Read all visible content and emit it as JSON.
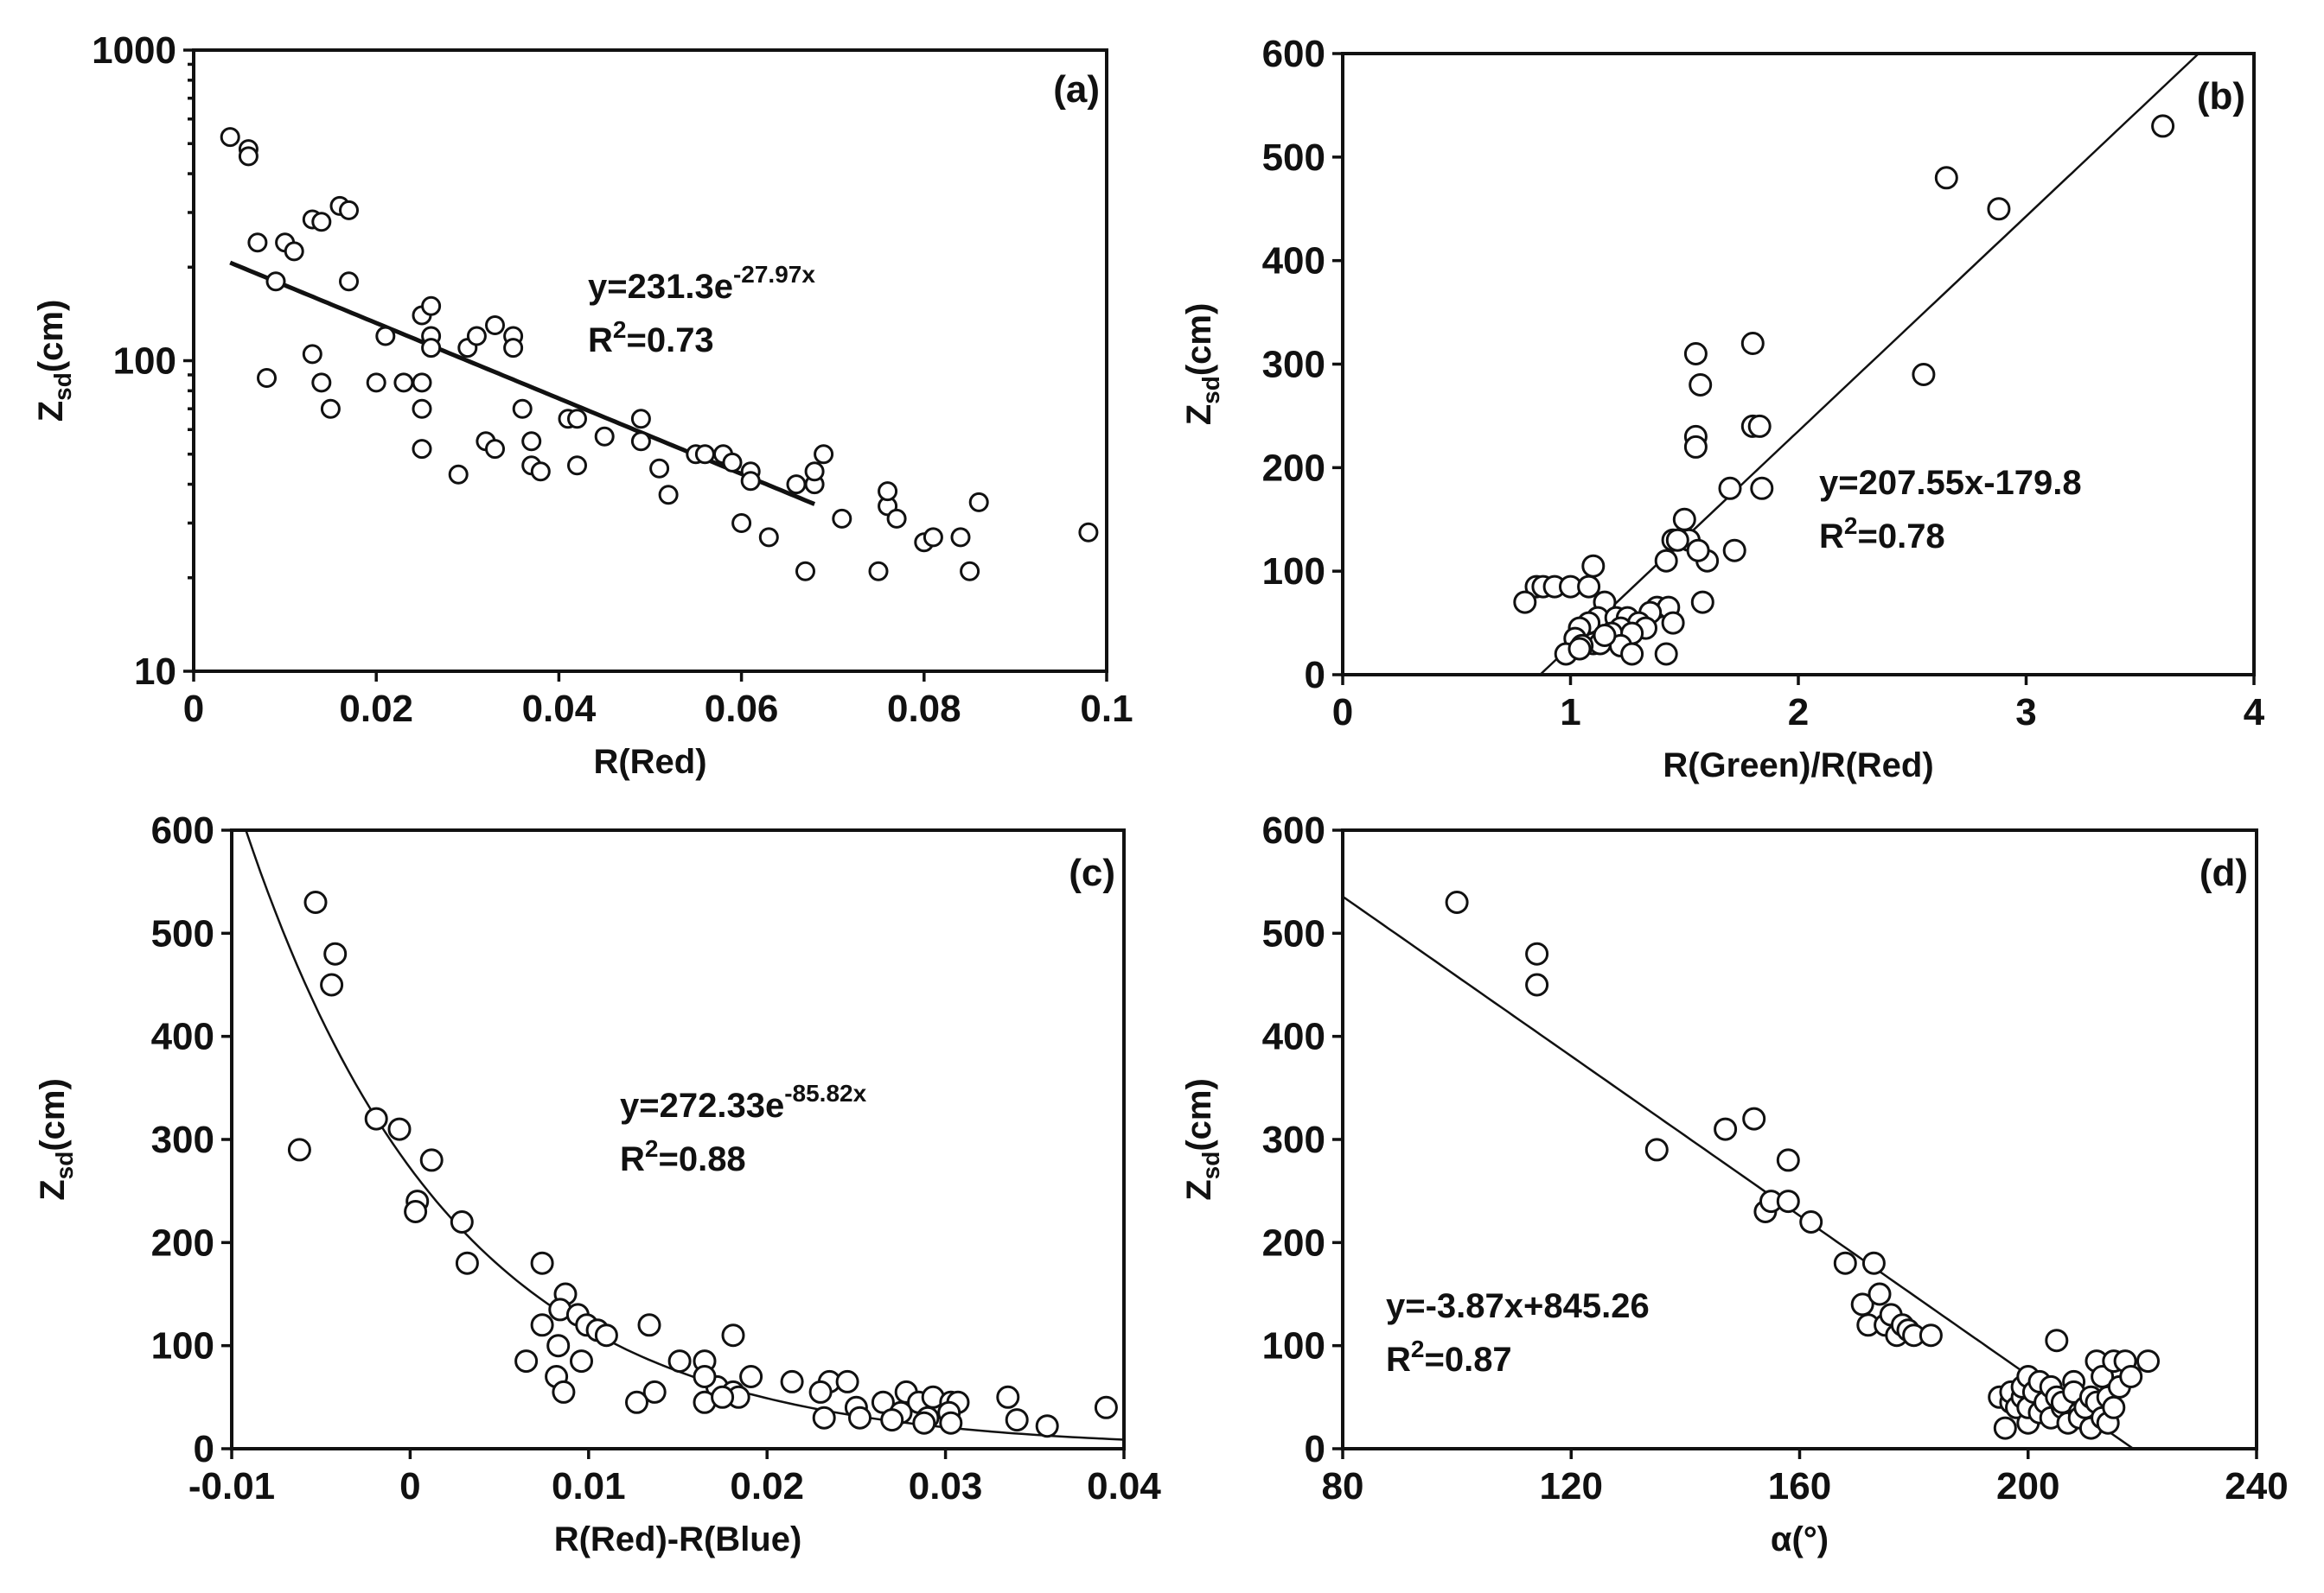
{
  "chart_data": [
    {
      "panel": "(a)",
      "type": "scatter",
      "xlabel": "R(Red)",
      "ylabel": "Zsd(cm)",
      "ylabel_main": "Z",
      "ylabel_sub": "sd",
      "ylabel_tail": "(cm)",
      "xlim": [
        0,
        0.1
      ],
      "ylim": [
        10,
        1000
      ],
      "yscale": "log",
      "xticks": [
        0,
        0.02,
        0.04,
        0.06,
        0.08,
        0.1
      ],
      "xtick_labels": [
        "0",
        "0.02",
        "0.04",
        "0.06",
        "0.08",
        "0.1"
      ],
      "yticks": [
        10,
        100,
        1000
      ],
      "ytick_labels": [
        "10",
        "100",
        "1000"
      ],
      "equation": {
        "base": "y=231.3e",
        "exp": "-27.97x",
        "r2_prefix": "R",
        "r2_sup": "2",
        "r2_value": "=0.73"
      },
      "fit": {
        "kind": "exp",
        "a": 231.3,
        "b": -27.97,
        "x_range": [
          0.004,
          0.068
        ]
      },
      "points": [
        [
          0.004,
          525
        ],
        [
          0.006,
          480
        ],
        [
          0.006,
          455
        ],
        [
          0.007,
          240
        ],
        [
          0.008,
          88
        ],
        [
          0.009,
          180
        ],
        [
          0.01,
          240
        ],
        [
          0.011,
          225
        ],
        [
          0.013,
          285
        ],
        [
          0.013,
          105
        ],
        [
          0.014,
          280
        ],
        [
          0.014,
          85
        ],
        [
          0.015,
          70
        ],
        [
          0.016,
          315
        ],
        [
          0.017,
          305
        ],
        [
          0.017,
          180
        ],
        [
          0.02,
          85
        ],
        [
          0.021,
          120
        ],
        [
          0.023,
          85
        ],
        [
          0.025,
          140
        ],
        [
          0.025,
          85
        ],
        [
          0.025,
          70
        ],
        [
          0.025,
          52
        ],
        [
          0.026,
          120
        ],
        [
          0.026,
          110
        ],
        [
          0.026,
          150
        ],
        [
          0.029,
          43
        ],
        [
          0.03,
          110
        ],
        [
          0.031,
          120
        ],
        [
          0.032,
          55
        ],
        [
          0.033,
          130
        ],
        [
          0.033,
          52
        ],
        [
          0.035,
          120
        ],
        [
          0.035,
          110
        ],
        [
          0.036,
          70
        ],
        [
          0.037,
          55
        ],
        [
          0.037,
          46
        ],
        [
          0.038,
          44
        ],
        [
          0.041,
          65
        ],
        [
          0.042,
          65
        ],
        [
          0.042,
          46
        ],
        [
          0.045,
          57
        ],
        [
          0.049,
          65
        ],
        [
          0.049,
          55
        ],
        [
          0.051,
          45
        ],
        [
          0.052,
          37
        ],
        [
          0.055,
          50
        ],
        [
          0.056,
          50
        ],
        [
          0.058,
          50
        ],
        [
          0.059,
          47
        ],
        [
          0.06,
          30
        ],
        [
          0.061,
          44
        ],
        [
          0.061,
          41
        ],
        [
          0.063,
          27
        ],
        [
          0.066,
          40
        ],
        [
          0.067,
          21
        ],
        [
          0.068,
          40
        ],
        [
          0.068,
          44
        ],
        [
          0.069,
          50
        ],
        [
          0.071,
          31
        ],
        [
          0.075,
          21
        ],
        [
          0.076,
          34
        ],
        [
          0.076,
          38
        ],
        [
          0.077,
          31
        ],
        [
          0.08,
          26
        ],
        [
          0.081,
          27
        ],
        [
          0.084,
          27
        ],
        [
          0.085,
          21
        ],
        [
          0.086,
          35
        ],
        [
          0.098,
          28
        ]
      ]
    },
    {
      "panel": "(b)",
      "type": "scatter",
      "xlabel": "R(Green)/R(Red)",
      "ylabel": "Zsd(cm)",
      "ylabel_main": "Z",
      "ylabel_sub": "sd",
      "ylabel_tail": "(cm)",
      "xlim": [
        0,
        4
      ],
      "ylim": [
        0,
        600
      ],
      "yscale": "linear",
      "xticks": [
        0,
        1,
        2,
        3,
        4
      ],
      "xtick_labels": [
        "0",
        "1",
        "2",
        "3",
        "4"
      ],
      "yticks": [
        0,
        100,
        200,
        300,
        400,
        500,
        600
      ],
      "ytick_labels": [
        "0",
        "100",
        "200",
        "300",
        "400",
        "500",
        "600"
      ],
      "equation": {
        "base": "y=207.55x-179.8",
        "exp": "",
        "r2_prefix": "R",
        "r2_sup": "2",
        "r2_value": "=0.78"
      },
      "fit": {
        "kind": "linear",
        "a": 207.55,
        "b": -179.8,
        "x_range": [
          0.866,
          3.757
        ]
      },
      "points": [
        [
          3.6,
          530
        ],
        [
          2.65,
          480
        ],
        [
          2.88,
          450
        ],
        [
          1.8,
          320
        ],
        [
          1.55,
          310
        ],
        [
          2.55,
          290
        ],
        [
          1.57,
          280
        ],
        [
          1.8,
          240
        ],
        [
          1.83,
          240
        ],
        [
          1.55,
          230
        ],
        [
          1.55,
          220
        ],
        [
          1.7,
          180
        ],
        [
          1.84,
          180
        ],
        [
          1.5,
          150
        ],
        [
          1.45,
          130
        ],
        [
          1.52,
          130
        ],
        [
          1.6,
          110
        ],
        [
          1.72,
          120
        ],
        [
          1.56,
          120
        ],
        [
          1.42,
          110
        ],
        [
          1.1,
          105
        ],
        [
          1.47,
          130
        ],
        [
          0.85,
          85
        ],
        [
          0.88,
          85
        ],
        [
          0.93,
          85
        ],
        [
          1.0,
          85
        ],
        [
          1.08,
          85
        ],
        [
          0.8,
          70
        ],
        [
          1.15,
          70
        ],
        [
          1.58,
          70
        ],
        [
          1.38,
          65
        ],
        [
          1.43,
          65
        ],
        [
          1.35,
          60
        ],
        [
          1.12,
          55
        ],
        [
          1.2,
          55
        ],
        [
          1.25,
          55
        ],
        [
          1.3,
          50
        ],
        [
          1.08,
          50
        ],
        [
          1.45,
          50
        ],
        [
          1.04,
          45
        ],
        [
          1.22,
          45
        ],
        [
          1.33,
          45
        ],
        [
          1.18,
          40
        ],
        [
          1.27,
          40
        ],
        [
          1.02,
          35
        ],
        [
          1.1,
          30
        ],
        [
          1.13,
          30
        ],
        [
          1.05,
          28
        ],
        [
          1.22,
          28
        ],
        [
          1.27,
          20
        ],
        [
          1.42,
          20
        ],
        [
          0.98,
          20
        ],
        [
          1.15,
          38
        ],
        [
          1.04,
          25
        ]
      ]
    },
    {
      "panel": "(c)",
      "type": "scatter",
      "xlabel": "R(Red)-R(Blue)",
      "ylabel": "Zsd(cm)",
      "ylabel_main": "Z",
      "ylabel_sub": "sd",
      "ylabel_tail": "(cm)",
      "xlim": [
        -0.01,
        0.04
      ],
      "ylim": [
        0,
        600
      ],
      "yscale": "linear",
      "xticks": [
        -0.01,
        0,
        0.01,
        0.02,
        0.03,
        0.04
      ],
      "xtick_labels": [
        "-0.01",
        "0",
        "0.01",
        "0.02",
        "0.03",
        "0.04"
      ],
      "yticks": [
        0,
        100,
        200,
        300,
        400,
        500,
        600
      ],
      "ytick_labels": [
        "0",
        "100",
        "200",
        "300",
        "400",
        "500",
        "600"
      ],
      "equation": {
        "base": "y=272.33e",
        "exp": "-85.82x",
        "r2_prefix": "R",
        "r2_sup": "2",
        "r2_value": "=0.88"
      },
      "fit": {
        "kind": "exp",
        "a": 272.33,
        "b": -85.82,
        "x_range": [
          -0.0092,
          0.04
        ]
      },
      "points": [
        [
          -0.0053,
          530
        ],
        [
          -0.0042,
          480
        ],
        [
          -0.0044,
          450
        ],
        [
          -0.0019,
          320
        ],
        [
          -0.0006,
          310
        ],
        [
          -0.0062,
          290
        ],
        [
          0.0012,
          280
        ],
        [
          0.0004,
          240
        ],
        [
          0.0003,
          230
        ],
        [
          0.0029,
          220
        ],
        [
          0.0032,
          180
        ],
        [
          0.0074,
          180
        ],
        [
          0.0087,
          150
        ],
        [
          0.0084,
          135
        ],
        [
          0.0094,
          130
        ],
        [
          0.0074,
          120
        ],
        [
          0.0099,
          120
        ],
        [
          0.0134,
          120
        ],
        [
          0.0105,
          115
        ],
        [
          0.011,
          110
        ],
        [
          0.0181,
          110
        ],
        [
          0.0083,
          100
        ],
        [
          0.0065,
          85
        ],
        [
          0.0096,
          85
        ],
        [
          0.0151,
          85
        ],
        [
          0.0165,
          85
        ],
        [
          0.0172,
          60
        ],
        [
          0.0082,
          70
        ],
        [
          0.0165,
          70
        ],
        [
          0.0191,
          70
        ],
        [
          0.0214,
          65
        ],
        [
          0.0235,
          65
        ],
        [
          0.0245,
          65
        ],
        [
          0.0086,
          55
        ],
        [
          0.0137,
          55
        ],
        [
          0.0181,
          55
        ],
        [
          0.0184,
          50
        ],
        [
          0.0165,
          45
        ],
        [
          0.0175,
          50
        ],
        [
          0.0127,
          45
        ],
        [
          0.023,
          55
        ],
        [
          0.025,
          40
        ],
        [
          0.0265,
          45
        ],
        [
          0.0278,
          55
        ],
        [
          0.0285,
          45
        ],
        [
          0.0293,
          50
        ],
        [
          0.0303,
          45
        ],
        [
          0.0307,
          45
        ],
        [
          0.0302,
          35
        ],
        [
          0.029,
          30
        ],
        [
          0.0275,
          35
        ],
        [
          0.0252,
          30
        ],
        [
          0.0232,
          30
        ],
        [
          0.027,
          28
        ],
        [
          0.0288,
          25
        ],
        [
          0.0303,
          25
        ],
        [
          0.0335,
          50
        ],
        [
          0.034,
          28
        ],
        [
          0.0357,
          22
        ],
        [
          0.039,
          40
        ]
      ]
    },
    {
      "panel": "(d)",
      "type": "scatter",
      "xlabel": "α(°)",
      "ylabel": "Zsd(cm)",
      "ylabel_main": "Z",
      "ylabel_sub": "sd",
      "ylabel_tail": "(cm)",
      "xlim": [
        80,
        240
      ],
      "ylim": [
        0,
        600
      ],
      "yscale": "linear",
      "xticks": [
        80,
        120,
        160,
        200,
        240
      ],
      "xtick_labels": [
        "80",
        "120",
        "160",
        "200",
        "240"
      ],
      "yticks": [
        0,
        100,
        200,
        300,
        400,
        500,
        600
      ],
      "ytick_labels": [
        "0",
        "100",
        "200",
        "300",
        "400",
        "500",
        "600"
      ],
      "equation": {
        "base": "y=-3.87x+845.26",
        "exp": "",
        "r2_prefix": "R",
        "r2_sup": "2",
        "r2_value": "=0.87"
      },
      "fit": {
        "kind": "linear",
        "a": -3.87,
        "b": 845.26,
        "x_range": [
          80,
          218.4
        ]
      },
      "points": [
        [
          100,
          530
        ],
        [
          114,
          480
        ],
        [
          114,
          450
        ],
        [
          135,
          290
        ],
        [
          147,
          310
        ],
        [
          152,
          320
        ],
        [
          154,
          230
        ],
        [
          155,
          240
        ],
        [
          158,
          240
        ],
        [
          158,
          280
        ],
        [
          162,
          220
        ],
        [
          168,
          180
        ],
        [
          171,
          140
        ],
        [
          172,
          120
        ],
        [
          173,
          180
        ],
        [
          174,
          150
        ],
        [
          175,
          120
        ],
        [
          176,
          130
        ],
        [
          177,
          110
        ],
        [
          178,
          120
        ],
        [
          179,
          115
        ],
        [
          180,
          110
        ],
        [
          183,
          110
        ],
        [
          195,
          50
        ],
        [
          196,
          20
        ],
        [
          197,
          45
        ],
        [
          197,
          55
        ],
        [
          198,
          40
        ],
        [
          199,
          50
        ],
        [
          199,
          60
        ],
        [
          200,
          70
        ],
        [
          200,
          25
        ],
        [
          200,
          40
        ],
        [
          201,
          55
        ],
        [
          202,
          65
        ],
        [
          202,
          35
        ],
        [
          203,
          45
        ],
        [
          204,
          60
        ],
        [
          204,
          30
        ],
        [
          205,
          105
        ],
        [
          205,
          50
        ],
        [
          206,
          40
        ],
        [
          206,
          45
        ],
        [
          207,
          25
        ],
        [
          208,
          65
        ],
        [
          208,
          55
        ],
        [
          209,
          35
        ],
        [
          209,
          30
        ],
        [
          210,
          40
        ],
        [
          211,
          50
        ],
        [
          211,
          20
        ],
        [
          212,
          85
        ],
        [
          212,
          45
        ],
        [
          213,
          30
        ],
        [
          213,
          70
        ],
        [
          214,
          50
        ],
        [
          214,
          25
        ],
        [
          215,
          85
        ],
        [
          215,
          40
        ],
        [
          216,
          60
        ],
        [
          217,
          85
        ],
        [
          218,
          70
        ],
        [
          221,
          85
        ]
      ]
    }
  ]
}
